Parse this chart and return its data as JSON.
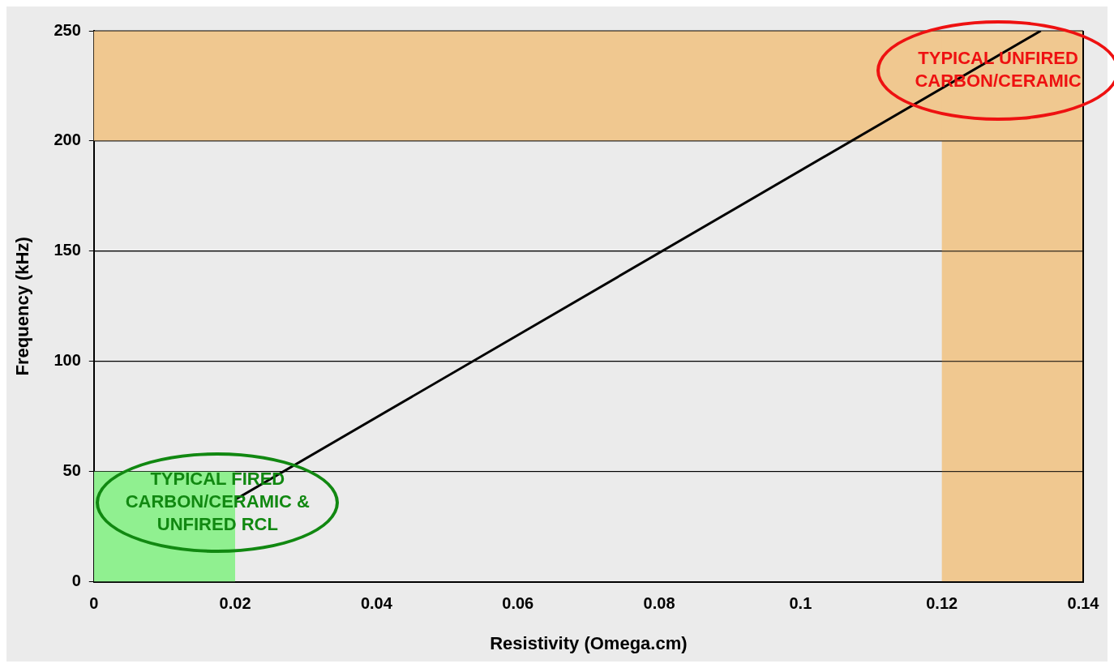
{
  "chart_data": {
    "type": "line",
    "xlabel": "Resistivity (Omega.cm)",
    "ylabel": "Frequency (kHz)",
    "xlim": [
      0,
      0.14
    ],
    "xticks": [
      0,
      0.02,
      0.04,
      0.06,
      0.08,
      0.1,
      0.12,
      0.14
    ],
    "ylim": [
      0,
      250
    ],
    "yticks": [
      0,
      50,
      100,
      150,
      200,
      250
    ],
    "grid": "y",
    "legend": false,
    "marker": "none",
    "line_style": "solid",
    "series": [
      {
        "type": "area",
        "color": "#90f090",
        "x": [
          0,
          0.02
        ],
        "values": [
          50,
          50
        ]
      },
      {
        "color": "#000000",
        "x": [
          0,
          0.134
        ],
        "values": [
          0,
          250
        ]
      }
    ],
    "bands": [
      {
        "axis": "y",
        "from": 200,
        "to": 250,
        "color": "#f0c890"
      },
      {
        "axis": "x",
        "from": 0.12,
        "to": 0.14,
        "color": "#f0c890"
      }
    ],
    "annotations": [
      "TYPICAL FIRED CARBON/CERAMIC & UNFIRED RCL",
      "TYPICAL UNFIRED CARBON/CERAMIC"
    ]
  }
}
